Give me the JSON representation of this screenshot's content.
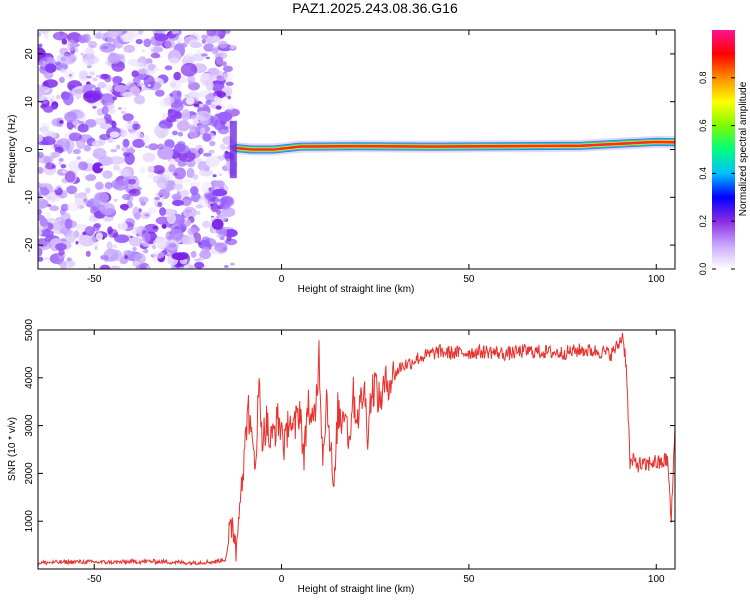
{
  "title": "PAZ1.2025.243.08.36.G16",
  "chart_data": [
    {
      "type": "heatmap",
      "xlabel": "Height of straight line (km)",
      "ylabel": "Frequency (Hz)",
      "xlim": [
        -65,
        105
      ],
      "ylim": [
        -25,
        25
      ],
      "xticks": [
        -50,
        0,
        50,
        100
      ],
      "yticks": [
        -20,
        -10,
        0,
        10,
        20
      ],
      "noise_region_x": [
        -65,
        -13
      ],
      "ridge": {
        "description": "narrow high-amplitude ridge near 0-2 Hz",
        "points": [
          [
            -12,
            0.3
          ],
          [
            -8,
            0.0
          ],
          [
            -2,
            0.0
          ],
          [
            5,
            0.6
          ],
          [
            20,
            0.7
          ],
          [
            40,
            0.6
          ],
          [
            60,
            0.7
          ],
          [
            80,
            0.8
          ],
          [
            90,
            1.2
          ],
          [
            100,
            1.6
          ],
          [
            105,
            1.5
          ]
        ]
      },
      "colorbar": {
        "label": "Normalized spectral amplitude",
        "range": [
          0.0,
          1.0
        ],
        "ticks": [
          "0.0",
          "0.2",
          "0.4",
          "0.6",
          "0.8"
        ],
        "colors": [
          "#ffffff",
          "#c9a6ff",
          "#8a2be2",
          "#0000ff",
          "#00bfff",
          "#00ff7f",
          "#7cfc00",
          "#ffff00",
          "#ff8c00",
          "#ff0000",
          "#ff1493"
        ]
      }
    },
    {
      "type": "line",
      "xlabel": "Height of straight line (km)",
      "ylabel": "SNR (10 * v/v)",
      "xlim": [
        -65,
        105
      ],
      "ylim": [
        0,
        5000
      ],
      "xticks": [
        -50,
        0,
        50,
        100
      ],
      "yticks": [
        1000,
        2000,
        3000,
        4000,
        5000
      ],
      "color": "#e8332f",
      "series": [
        {
          "name": "SNR",
          "x": [
            -65,
            -55,
            -45,
            -35,
            -25,
            -18,
            -15,
            -13,
            -12,
            -11,
            -10,
            -9,
            -8,
            -7,
            -6,
            -5,
            -4,
            -3,
            -2,
            -1,
            0,
            1,
            2,
            3,
            4,
            5,
            6,
            7,
            8,
            9,
            10,
            11,
            12,
            13,
            14,
            15,
            16,
            17,
            18,
            19,
            20,
            21,
            22,
            23,
            24,
            25,
            26,
            27,
            28,
            30,
            32,
            34,
            36,
            38,
            40,
            42,
            45,
            50,
            55,
            60,
            65,
            70,
            75,
            80,
            85,
            88,
            90,
            91,
            92,
            93,
            94,
            95,
            97,
            99,
            101,
            103,
            104,
            105
          ],
          "y": [
            130,
            150,
            140,
            160,
            130,
            150,
            200,
            1000,
            400,
            1800,
            2200,
            3500,
            2600,
            2300,
            3800,
            2700,
            3100,
            2600,
            2900,
            3100,
            2950,
            2500,
            3300,
            2800,
            3100,
            3400,
            2200,
            3600,
            2900,
            3300,
            4500,
            2400,
            3600,
            2700,
            1500,
            3300,
            3100,
            3500,
            2600,
            3700,
            3200,
            3400,
            3800,
            2900,
            3700,
            3900,
            3500,
            3700,
            3900,
            4050,
            4250,
            4300,
            4400,
            4450,
            4500,
            4550,
            4520,
            4530,
            4550,
            4500,
            4560,
            4540,
            4520,
            4580,
            4550,
            4500,
            4700,
            4900,
            4300,
            2200,
            2250,
            2200,
            2150,
            2250,
            2200,
            2300,
            1000,
            3000
          ]
        }
      ]
    }
  ]
}
